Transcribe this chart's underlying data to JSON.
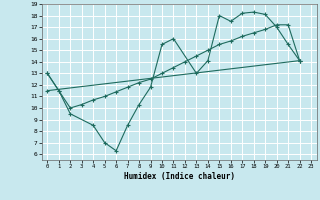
{
  "xlabel": "Humidex (Indice chaleur)",
  "bg_color": "#c8e8ee",
  "grid_color": "#ffffff",
  "line_color": "#1e6b5e",
  "xlim": [
    -0.5,
    23.5
  ],
  "ylim": [
    5.5,
    19.0
  ],
  "xticks": [
    0,
    1,
    2,
    3,
    4,
    5,
    6,
    7,
    8,
    9,
    10,
    11,
    12,
    13,
    14,
    15,
    16,
    17,
    18,
    19,
    20,
    21,
    22,
    23
  ],
  "yticks": [
    6,
    7,
    8,
    9,
    10,
    11,
    12,
    13,
    14,
    15,
    16,
    17,
    18,
    19
  ],
  "line1_x": [
    0,
    1,
    2,
    4,
    5,
    6,
    7,
    8,
    9,
    10,
    11,
    13,
    14,
    15,
    16,
    17,
    18,
    19,
    20,
    21,
    22
  ],
  "line1_y": [
    13,
    11.5,
    9.5,
    8.5,
    7.0,
    6.3,
    8.5,
    10.3,
    11.8,
    15.5,
    16.0,
    13.0,
    14.1,
    18.0,
    17.5,
    18.2,
    18.3,
    18.1,
    17.0,
    15.5,
    14.1
  ],
  "line2_x": [
    0,
    1,
    2,
    3,
    4,
    5,
    6,
    7,
    8,
    9,
    10,
    11,
    12,
    13,
    14,
    15,
    16,
    17,
    18,
    19,
    20,
    21,
    22
  ],
  "line2_y": [
    13.0,
    11.5,
    10.0,
    10.3,
    10.7,
    11.0,
    11.4,
    11.8,
    12.2,
    12.5,
    13.0,
    13.5,
    14.0,
    14.5,
    15.0,
    15.5,
    15.8,
    16.2,
    16.5,
    16.8,
    17.2,
    17.2,
    14.1
  ],
  "line3_x": [
    0,
    22
  ],
  "line3_y": [
    11.5,
    14.1
  ]
}
